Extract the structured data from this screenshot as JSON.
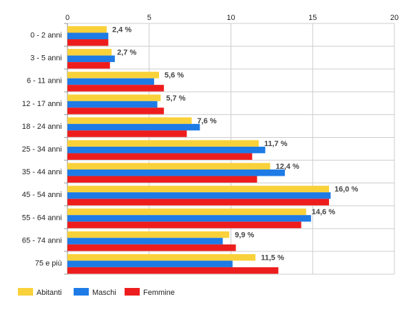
{
  "chart_data": {
    "type": "bar",
    "orientation": "horizontal",
    "title": "",
    "xlabel": "",
    "ylabel": "",
    "xlim": [
      0,
      20
    ],
    "x_ticks": [
      0,
      5,
      10,
      15,
      20
    ],
    "grid": true,
    "legend_position": "bottom-left",
    "categories": [
      "0 - 2 anni",
      "3 - 5 anni",
      "6 - 11 anni",
      "12 - 17 anni",
      "18 - 24 anni",
      "25 - 34 anni",
      "35 - 44 anni",
      "45 - 54 anni",
      "55 - 64 anni",
      "65 - 74 anni",
      "75 e più"
    ],
    "series": [
      {
        "name": "Abitanti",
        "color": "#f9d13a",
        "values": [
          2.4,
          2.7,
          5.6,
          5.7,
          7.6,
          11.7,
          12.4,
          16.0,
          14.6,
          9.9,
          11.5
        ]
      },
      {
        "name": "Maschi",
        "color": "#1e7be6",
        "values": [
          2.5,
          2.9,
          5.3,
          5.5,
          8.1,
          12.1,
          13.3,
          16.1,
          14.9,
          9.5,
          10.1
        ]
      },
      {
        "name": "Femmine",
        "color": "#ee1d1d",
        "values": [
          2.5,
          2.6,
          5.9,
          5.9,
          7.3,
          11.3,
          11.6,
          16.0,
          14.3,
          10.3,
          12.9
        ]
      }
    ],
    "data_labels": [
      "2,4 %",
      "2,7 %",
      "5,6 %",
      "5,7 %",
      "7,6 %",
      "11,7 %",
      "12,4 %",
      "16,0 %",
      "14,6 %",
      "9,9 %",
      "11,5 %"
    ]
  }
}
